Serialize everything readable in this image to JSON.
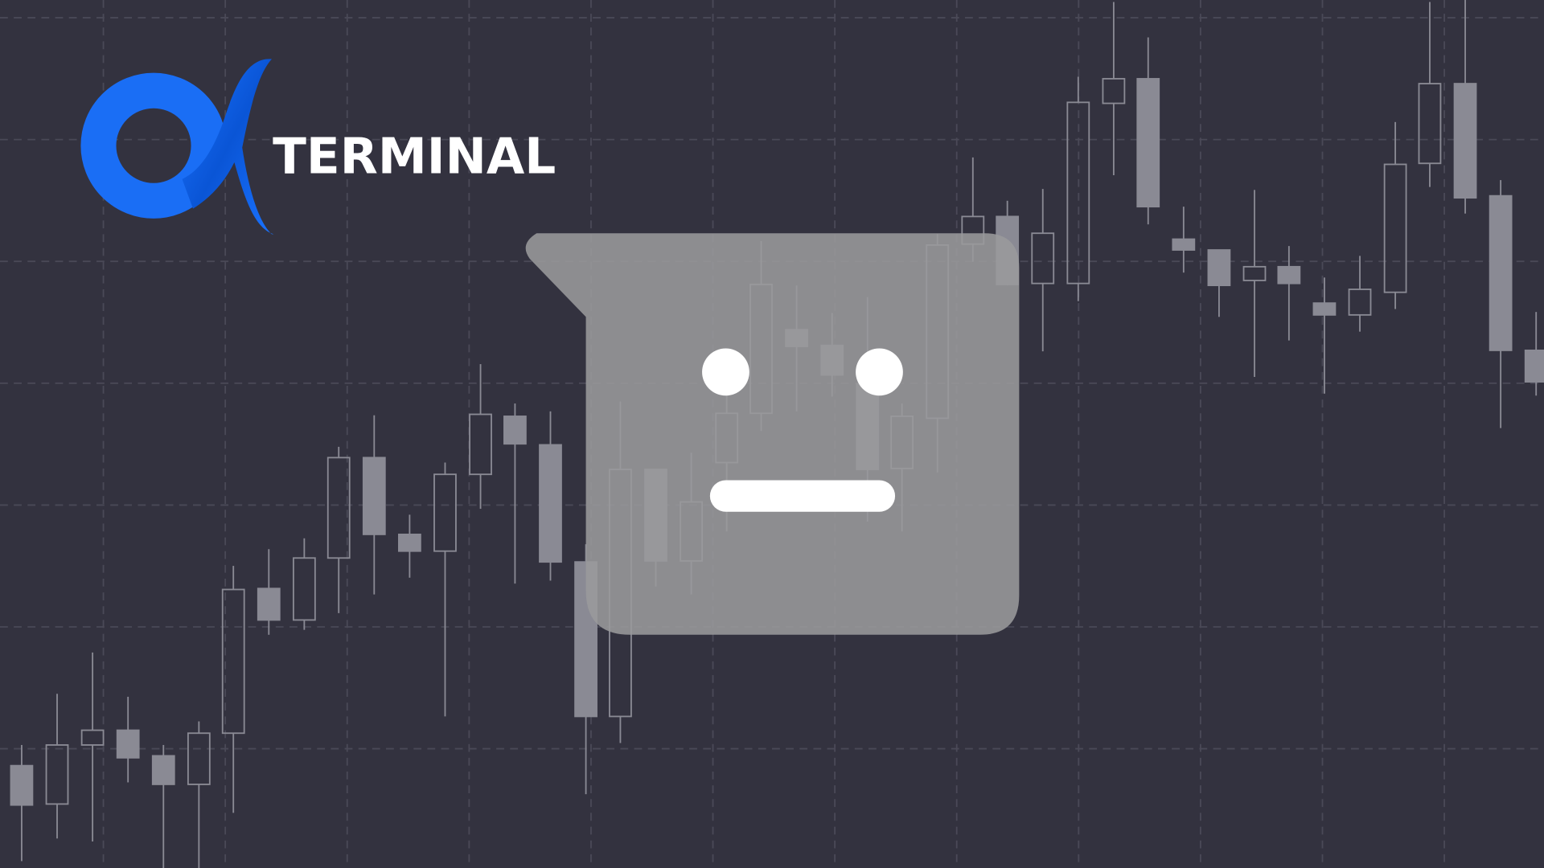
{
  "logo": {
    "text": "TERMINAL"
  }
}
